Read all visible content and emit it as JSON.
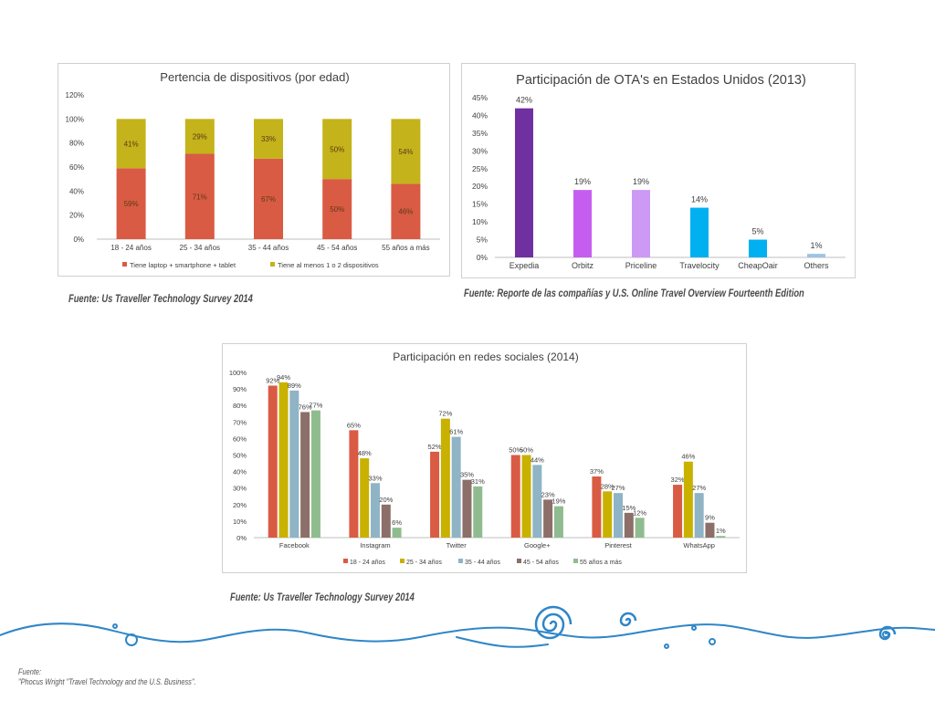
{
  "colors": {
    "orange": "#d95b43",
    "gold": "#c4b31b",
    "purple": "#7030a0",
    "magenta": "#c55ef0",
    "lavender": "#cc99f5",
    "blue": "#00b0f0",
    "lightblue": "#9dc3e6",
    "age1": "#d95b43",
    "age2": "#c9b100",
    "age3": "#8fb4c5",
    "age4": "#8c6f68",
    "age5": "#8fbc8f",
    "wave": "#2f86c7"
  },
  "sources": {
    "chart1": "Fuente: Us Traveller Technology Survey 2014",
    "chart2": "Fuente: Reporte de las compañías y U.S. Online Travel Overview Fourteenth Edition",
    "chart3": "Fuente: Us Traveller Technology Survey 2014"
  },
  "footnote": {
    "line1": "Fuente:",
    "line2": "\"Phocus Wright \"Travel Technology and the U.S. Business\"."
  },
  "chart_data": [
    {
      "type": "bar",
      "stacked": true,
      "title": "Pertencia de dispositivos (por edad)",
      "categories": [
        "18 - 24 años",
        "25 - 34 años",
        "35 - 44 años",
        "45 - 54 años",
        "55 años a más"
      ],
      "series": [
        {
          "name": "Tiene laptop + smartphone + tablet",
          "values": [
            59,
            71,
            67,
            50,
            46
          ],
          "labels": [
            "59%",
            "71%",
            "67%",
            "50%",
            "46%"
          ]
        },
        {
          "name": "Tiene al menos 1 o 2 dispositivos",
          "values": [
            41,
            29,
            33,
            50,
            54
          ],
          "labels": [
            "41%",
            "29%",
            "33%",
            "50%",
            "54%"
          ]
        }
      ],
      "ylim": [
        0,
        120
      ],
      "yticks": [
        "0%",
        "20%",
        "40%",
        "60%",
        "80%",
        "100%",
        "120%"
      ],
      "legend": "bottom",
      "grid": false
    },
    {
      "type": "bar",
      "title": "Participación de OTA's en Estados Unidos (2013)",
      "categories": [
        "Expedia",
        "Orbitz",
        "Priceline",
        "Travelocity",
        "CheapOair",
        "Others"
      ],
      "values": [
        42,
        19,
        19,
        14,
        5,
        1
      ],
      "labels": [
        "42%",
        "19%",
        "19%",
        "14%",
        "5%",
        "1%"
      ],
      "ylim": [
        0,
        45
      ],
      "yticks": [
        "0%",
        "5%",
        "10%",
        "15%",
        "20%",
        "25%",
        "30%",
        "35%",
        "40%",
        "45%"
      ],
      "legend": "none",
      "grid": false
    },
    {
      "type": "bar",
      "title": "Participación en redes sociales (2014)",
      "categories": [
        "Facebook",
        "Instagram",
        "Twitter",
        "Google+",
        "Pinterest",
        "WhatsApp"
      ],
      "series": [
        {
          "name": "18 - 24 años",
          "values": [
            92,
            65,
            52,
            50,
            37,
            32
          ]
        },
        {
          "name": "25 - 34 años",
          "values": [
            94,
            48,
            72,
            50,
            28,
            46
          ]
        },
        {
          "name": "35 - 44 años",
          "values": [
            89,
            33,
            61,
            44,
            27,
            27
          ]
        },
        {
          "name": "45 - 54 años",
          "values": [
            76,
            20,
            35,
            23,
            15,
            9
          ]
        },
        {
          "name": "55 años a más",
          "values": [
            77,
            6,
            31,
            19,
            12,
            1
          ]
        }
      ],
      "ylim": [
        0,
        100
      ],
      "yticks": [
        "0%",
        "10%",
        "20%",
        "30%",
        "40%",
        "50%",
        "60%",
        "70%",
        "80%",
        "90%",
        "100%"
      ],
      "legend": "bottom",
      "grid": false
    }
  ]
}
